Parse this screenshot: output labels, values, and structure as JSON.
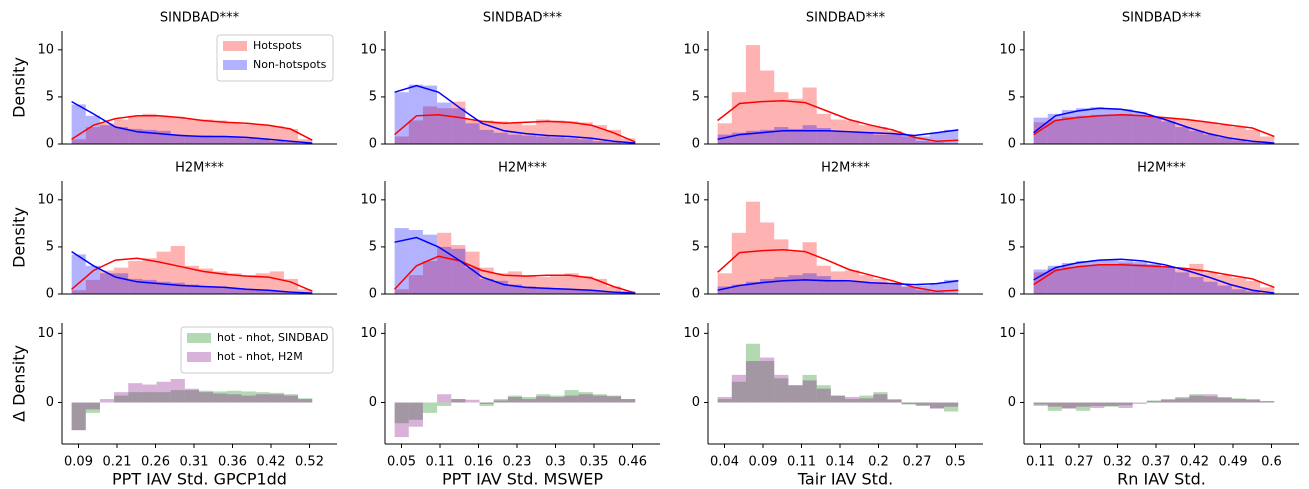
{
  "chart_data": [
    {
      "type": "hist-kde",
      "title": "SINDBAD***",
      "ylabel": "Density",
      "ylim": [
        0,
        12
      ],
      "yticks": [
        0,
        5,
        10
      ],
      "legend": "upper right",
      "series": [
        {
          "name": "Hotspots",
          "color": "red",
          "values": [
            0.5,
            1.8,
            2.2,
            2.6,
            3.0,
            3.2,
            3.0,
            2.9,
            2.6,
            2.6,
            2.5,
            2.3,
            2.1,
            2.0,
            1.9,
            1.6,
            0.5
          ],
          "kde": [
            0.5,
            2.0,
            2.7,
            3.0,
            3.0,
            2.8,
            2.5,
            2.3,
            2.2,
            2.0,
            1.6,
            0.4
          ]
        },
        {
          "name": "Non-hotspots",
          "color": "blue",
          "values": [
            4.2,
            3.0,
            2.0,
            1.8,
            1.6,
            1.5,
            1.4,
            1.0,
            0.9,
            0.9,
            0.8,
            0.7,
            0.6,
            0.5,
            0.3,
            0.2,
            0.1
          ],
          "kde": [
            4.5,
            3.2,
            1.8,
            1.3,
            1.1,
            0.9,
            0.8,
            0.8,
            0.7,
            0.5,
            0.3,
            0.1
          ]
        }
      ]
    },
    {
      "type": "hist-kde",
      "title": "SINDBAD***",
      "ylim": [
        0,
        12
      ],
      "yticks": [
        0,
        5,
        10
      ],
      "series": [
        {
          "color": "red",
          "values": [
            0.8,
            2.5,
            4.0,
            3.8,
            4.5,
            2.6,
            2.5,
            2.4,
            2.2,
            2.0,
            2.6,
            2.5,
            2.4,
            2.3,
            2.0,
            1.5,
            0.6
          ],
          "kde": [
            1.0,
            3.0,
            3.1,
            2.8,
            2.4,
            2.2,
            2.3,
            2.4,
            2.3,
            2.0,
            1.2,
            0.2
          ]
        },
        {
          "color": "blue",
          "values": [
            5.5,
            6.3,
            6.2,
            4.4,
            3.8,
            2.2,
            1.5,
            1.2,
            1.0,
            0.9,
            0.8,
            0.7,
            0.6,
            0.5,
            0.3,
            0.2,
            0.1
          ],
          "kde": [
            5.5,
            6.2,
            5.5,
            3.8,
            2.2,
            1.4,
            1.1,
            0.9,
            0.8,
            0.6,
            0.3,
            0.1
          ]
        }
      ]
    },
    {
      "type": "hist-kde",
      "title": "SINDBAD***",
      "ylim": [
        0,
        12
      ],
      "yticks": [
        0,
        5,
        10
      ],
      "series": [
        {
          "color": "red",
          "values": [
            2.2,
            5.5,
            10.5,
            7.8,
            5.5,
            4.8,
            6.0,
            3.2,
            2.6,
            2.5,
            2.0,
            1.8,
            1.4,
            0.8,
            0.3,
            0.2,
            0.1
          ],
          "kde": [
            2.5,
            4.3,
            4.5,
            4.6,
            4.4,
            3.5,
            2.6,
            2.0,
            1.5,
            0.7,
            0.3,
            0.4
          ]
        },
        {
          "color": "blue",
          "values": [
            1.0,
            1.2,
            1.4,
            1.5,
            1.8,
            1.6,
            2.0,
            1.7,
            1.3,
            1.2,
            1.2,
            1.0,
            1.0,
            0.9,
            0.8,
            1.2,
            1.5
          ],
          "kde": [
            0.5,
            1.0,
            1.2,
            1.4,
            1.4,
            1.4,
            1.3,
            1.2,
            1.1,
            0.9,
            1.2,
            1.5
          ]
        }
      ]
    },
    {
      "type": "hist-kde",
      "title": "SINDBAD***",
      "ylim": [
        0,
        12
      ],
      "yticks": [
        0,
        5,
        10
      ],
      "series": [
        {
          "color": "red",
          "values": [
            2.3,
            2.6,
            2.9,
            3.0,
            3.1,
            3.1,
            3.2,
            3.0,
            2.9,
            2.8,
            2.7,
            2.5,
            2.3,
            2.0,
            1.8,
            1.5,
            0.8
          ],
          "kde": [
            1.0,
            2.5,
            2.8,
            3.0,
            3.1,
            3.0,
            2.8,
            2.6,
            2.3,
            2.0,
            1.7,
            0.8
          ]
        },
        {
          "color": "blue",
          "values": [
            2.8,
            3.2,
            3.6,
            3.8,
            3.9,
            3.8,
            3.7,
            3.4,
            2.9,
            2.4,
            1.8,
            1.4,
            1.0,
            0.7,
            0.4,
            0.2,
            0.1
          ],
          "kde": [
            1.2,
            3.0,
            3.5,
            3.8,
            3.7,
            3.3,
            2.6,
            1.8,
            1.1,
            0.6,
            0.3,
            0.1
          ]
        }
      ]
    },
    {
      "type": "hist-kde",
      "title": "H2M***",
      "ylabel": "Density",
      "ylim": [
        0,
        12
      ],
      "yticks": [
        0,
        5,
        10
      ],
      "series": [
        {
          "color": "red",
          "values": [
            0.4,
            1.5,
            2.5,
            2.8,
            3.5,
            3.8,
            4.5,
            5.1,
            3.0,
            2.7,
            2.4,
            2.2,
            2.0,
            2.2,
            2.4,
            1.6,
            0.5
          ],
          "kde": [
            0.5,
            2.5,
            3.6,
            3.8,
            3.4,
            2.9,
            2.4,
            2.1,
            1.9,
            1.8,
            1.3,
            0.3
          ]
        },
        {
          "color": "blue",
          "values": [
            4.2,
            3.0,
            2.2,
            2.2,
            1.6,
            1.5,
            1.3,
            1.2,
            1.0,
            0.8,
            0.8,
            0.6,
            0.5,
            0.4,
            0.3,
            0.2,
            0.1
          ],
          "kde": [
            4.5,
            3.0,
            1.8,
            1.3,
            1.1,
            0.9,
            0.8,
            0.7,
            0.5,
            0.4,
            0.2,
            0.1
          ]
        }
      ]
    },
    {
      "type": "hist-kde",
      "title": "H2M***",
      "ylim": [
        0,
        12
      ],
      "yticks": [
        0,
        5,
        10
      ],
      "series": [
        {
          "color": "red",
          "values": [
            0.5,
            2.0,
            3.5,
            6.5,
            5.2,
            4.5,
            2.8,
            2.2,
            2.4,
            2.0,
            1.8,
            1.9,
            2.2,
            1.9,
            1.6,
            0.8,
            0.3
          ],
          "kde": [
            0.5,
            3.0,
            4.0,
            3.5,
            2.5,
            2.0,
            1.9,
            2.0,
            2.0,
            1.7,
            0.8,
            0.1
          ]
        },
        {
          "color": "blue",
          "values": [
            7.0,
            6.8,
            6.3,
            5.0,
            4.8,
            2.8,
            1.6,
            1.4,
            1.0,
            0.8,
            0.7,
            0.6,
            0.5,
            0.4,
            0.3,
            0.2,
            0.1
          ],
          "kde": [
            5.5,
            6.0,
            5.0,
            3.5,
            1.8,
            1.0,
            0.7,
            0.6,
            0.5,
            0.4,
            0.2,
            0.1
          ]
        }
      ]
    },
    {
      "type": "hist-kde",
      "title": "H2M***",
      "ylim": [
        0,
        12
      ],
      "yticks": [
        0,
        5,
        10
      ],
      "series": [
        {
          "color": "red",
          "values": [
            2.2,
            6.5,
            9.8,
            7.6,
            5.8,
            4.5,
            5.5,
            3.0,
            2.4,
            2.5,
            2.0,
            1.6,
            1.2,
            0.8,
            0.4,
            0.2,
            0.1
          ],
          "kde": [
            2.3,
            4.4,
            4.6,
            4.7,
            4.5,
            3.6,
            2.6,
            2.0,
            1.4,
            0.7,
            0.3,
            0.4
          ]
        },
        {
          "color": "blue",
          "values": [
            0.8,
            1.0,
            1.3,
            1.6,
            1.8,
            2.0,
            2.2,
            1.9,
            1.5,
            1.3,
            1.2,
            1.1,
            1.0,
            0.8,
            0.9,
            1.1,
            1.5
          ],
          "kde": [
            0.4,
            0.9,
            1.2,
            1.4,
            1.5,
            1.4,
            1.4,
            1.2,
            1.1,
            1.0,
            1.1,
            1.4
          ]
        }
      ]
    },
    {
      "type": "hist-kde",
      "title": "H2M***",
      "ylim": [
        0,
        12
      ],
      "yticks": [
        0,
        5,
        10
      ],
      "series": [
        {
          "color": "red",
          "values": [
            2.3,
            2.7,
            2.9,
            3.0,
            3.1,
            3.2,
            3.3,
            3.2,
            3.1,
            2.9,
            2.6,
            3.2,
            2.3,
            2.0,
            1.7,
            1.4,
            0.7
          ],
          "kde": [
            1.0,
            2.5,
            2.9,
            3.1,
            3.1,
            3.0,
            2.9,
            2.7,
            2.4,
            2.0,
            1.6,
            0.7
          ]
        },
        {
          "color": "blue",
          "values": [
            2.6,
            3.0,
            3.3,
            3.5,
            3.6,
            3.6,
            3.5,
            3.4,
            3.2,
            2.8,
            2.3,
            1.8,
            1.3,
            0.9,
            0.5,
            0.3,
            0.1
          ],
          "kde": [
            1.5,
            2.8,
            3.3,
            3.6,
            3.7,
            3.5,
            3.1,
            2.5,
            1.8,
            1.0,
            0.4,
            0.1
          ]
        }
      ]
    },
    {
      "type": "hist",
      "ylabel": "Δ Density",
      "xlabel": "PPT IAV Std. GPCP1dd",
      "ylim": [
        -6,
        11.5
      ],
      "yticks": [
        0,
        10
      ],
      "legend": "upper right",
      "xtick_labels": [
        "0.09",
        "0.21",
        "0.26",
        "0.31",
        "0.36",
        "0.42",
        "0.52"
      ],
      "series": [
        {
          "name": "hot - nhot, SINDBAD",
          "color": "green",
          "values": [
            -4.0,
            -1.5,
            0.0,
            1.0,
            1.5,
            1.5,
            1.5,
            1.8,
            1.8,
            1.7,
            1.6,
            1.7,
            1.6,
            1.5,
            1.4,
            1.2,
            0.6
          ]
        },
        {
          "name": "hot - nhot, H2M",
          "color": "purple",
          "values": [
            -4.0,
            -1.0,
            0.5,
            1.5,
            2.8,
            2.6,
            3.0,
            3.4,
            2.0,
            1.5,
            1.3,
            1.2,
            1.0,
            1.2,
            1.2,
            1.0,
            0.5
          ]
        }
      ]
    },
    {
      "type": "hist",
      "xlabel": "PPT IAV Std. MSWEP",
      "ylim": [
        -6,
        11.5
      ],
      "yticks": [
        0,
        10
      ],
      "xtick_labels": [
        "0.05",
        "0.11",
        "0.16",
        "0.23",
        "0.3",
        "0.35",
        "0.46"
      ],
      "series": [
        {
          "color": "green",
          "values": [
            -3.0,
            -2.5,
            -1.5,
            -0.5,
            0.5,
            0.0,
            -0.5,
            0.5,
            1.0,
            0.8,
            1.2,
            1.0,
            1.8,
            1.5,
            1.2,
            1.0,
            0.5
          ]
        },
        {
          "color": "purple",
          "values": [
            -5.0,
            -3.5,
            0,
            1.2,
            0.5,
            0.4,
            -0.2,
            0.3,
            0.8,
            0.5,
            0.9,
            0.8,
            1.0,
            1.2,
            1.0,
            0.9,
            0.5
          ]
        }
      ]
    },
    {
      "type": "hist",
      "xlabel": "Tair IAV Std.",
      "ylim": [
        -6,
        11.5
      ],
      "yticks": [
        0,
        10
      ],
      "xtick_labels": [
        "0.04",
        "0.09",
        "0.11",
        "0.14",
        "0.2",
        "0.27",
        "0.5"
      ],
      "series": [
        {
          "color": "green",
          "values": [
            0.5,
            3.0,
            8.5,
            6.0,
            3.5,
            2.5,
            4.0,
            2.5,
            1.0,
            0.5,
            1.0,
            1.5,
            0.5,
            -0.3,
            -0.5,
            -0.8,
            -1.3
          ]
        },
        {
          "color": "purple",
          "values": [
            0.8,
            4.0,
            6.0,
            6.5,
            4.0,
            2.5,
            3.2,
            2.0,
            1.0,
            0.8,
            0.6,
            1.2,
            0.4,
            -0.2,
            -0.4,
            -0.9,
            -0.6
          ]
        }
      ]
    },
    {
      "type": "hist",
      "xlabel": "Rn IAV Std.",
      "ylim": [
        -6,
        11.5
      ],
      "yticks": [
        0,
        10
      ],
      "xtick_labels": [
        "0.11",
        "0.27",
        "0.32",
        "0.37",
        "0.42",
        "0.49",
        "0.6"
      ],
      "series": [
        {
          "color": "green",
          "values": [
            -0.5,
            -1.2,
            -0.8,
            -1.2,
            -0.5,
            -0.6,
            -0.4,
            0,
            0.3,
            0.5,
            0.8,
            1.2,
            0.9,
            0.8,
            0.6,
            0.5,
            0.2
          ]
        },
        {
          "color": "purple",
          "values": [
            -0.3,
            -0.6,
            -0.9,
            -0.6,
            -0.8,
            -0.5,
            -0.8,
            -0.2,
            0.2,
            0.4,
            0.6,
            1.0,
            1.2,
            0.7,
            0.5,
            0.4,
            0.2
          ]
        }
      ]
    }
  ]
}
